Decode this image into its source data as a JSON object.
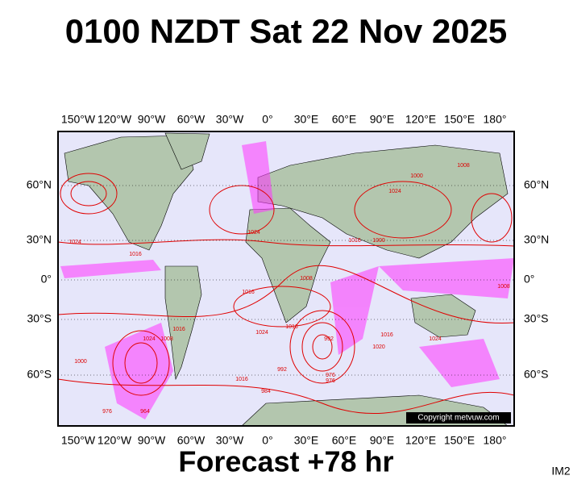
{
  "header": {
    "title": "0100 NZDT Sat 22 Nov 2025"
  },
  "map": {
    "longitude_labels": [
      "150°W",
      "120°W",
      "90°W",
      "60°W",
      "30°W",
      "0°",
      "30°E",
      "60°E",
      "90°E",
      "120°E",
      "150°E",
      "180°"
    ],
    "latitude_labels": [
      "60°N",
      "30°N",
      "0°",
      "30°S",
      "60°S"
    ],
    "contour_labels": [
      "1024",
      "1016",
      "1016",
      "1008",
      "1016",
      "1024",
      "1016",
      "992",
      "976",
      "984",
      "1000",
      "1024",
      "1008",
      "1016",
      "1000",
      "1008",
      "1024",
      "1024",
      "1016",
      "1000",
      "992",
      "976",
      "964",
      "976",
      "1016",
      "1024",
      "1020",
      "1008"
    ],
    "copyright": "Copyright metvuw.com"
  },
  "footer": {
    "forecast": "Forecast +78 hr",
    "image_id": "IM2"
  }
}
